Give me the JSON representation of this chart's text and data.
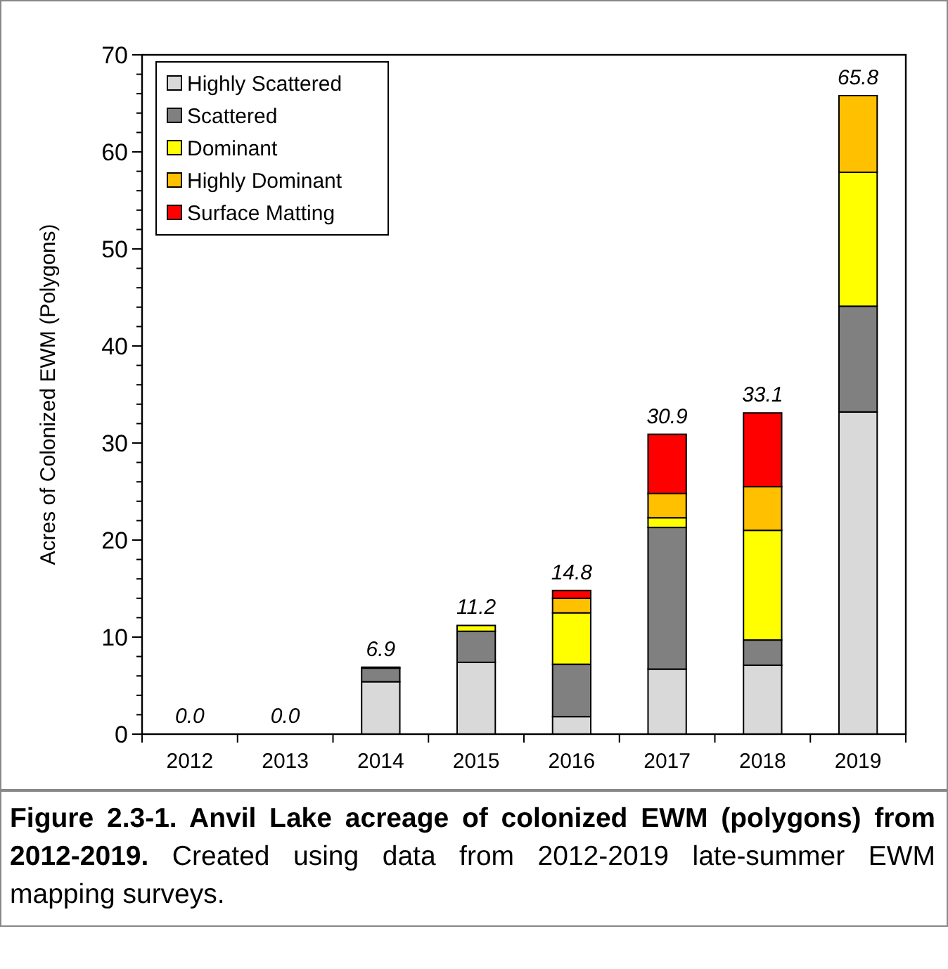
{
  "chart_data": {
    "type": "bar",
    "stacked": true,
    "ylabel": "Acres of Colonized EWM (Polygons)",
    "categories": [
      "2012",
      "2013",
      "2014",
      "2015",
      "2016",
      "2017",
      "2018",
      "2019"
    ],
    "series": [
      {
        "name": "Highly Scattered",
        "color": "#d9d9d9",
        "values": [
          0,
          0,
          5.4,
          7.4,
          1.8,
          6.7,
          7.1,
          33.2
        ]
      },
      {
        "name": "Scattered",
        "color": "#808080",
        "values": [
          0,
          0,
          1.4,
          3.2,
          5.4,
          14.6,
          2.6,
          10.9
        ]
      },
      {
        "name": "Dominant",
        "color": "#ffff00",
        "values": [
          0,
          0,
          0,
          0.6,
          5.3,
          1.0,
          11.3,
          13.8
        ]
      },
      {
        "name": "Highly Dominant",
        "color": "#ffc000",
        "values": [
          0,
          0,
          0,
          0,
          1.5,
          2.5,
          4.5,
          7.9
        ]
      },
      {
        "name": "Surface Matting",
        "color": "#ff0000",
        "values": [
          0,
          0,
          0.1,
          0,
          0.8,
          6.1,
          7.6,
          0
        ]
      }
    ],
    "totals": [
      "0.0",
      "0.0",
      "6.9",
      "11.2",
      "14.8",
      "30.9",
      "33.1",
      "65.8"
    ],
    "ylim": [
      0,
      70
    ],
    "yticks": [
      0,
      {
        "value": 2,
        "label": null
      },
      {
        "value": 4,
        "label": null
      },
      {
        "value": 6,
        "label": null
      },
      {
        "value": 8,
        "label": null
      },
      10,
      {
        "value": 12,
        "label": null
      },
      {
        "value": 14,
        "label": null
      },
      {
        "value": 16,
        "label": null
      },
      {
        "value": 18,
        "label": null
      },
      20,
      {
        "value": 22,
        "label": null
      },
      {
        "value": 24,
        "label": null
      },
      {
        "value": 26,
        "label": null
      },
      {
        "value": 28,
        "label": null
      },
      30,
      {
        "value": 32,
        "label": null
      },
      {
        "value": 34,
        "label": null
      },
      {
        "value": 36,
        "label": null
      },
      {
        "value": 38,
        "label": null
      },
      40,
      {
        "value": 42,
        "label": null
      },
      {
        "value": 44,
        "label": null
      },
      {
        "value": 46,
        "label": null
      },
      {
        "value": 48,
        "label": null
      },
      50,
      {
        "value": 52,
        "label": null
      },
      {
        "value": 54,
        "label": null
      },
      {
        "value": 56,
        "label": null
      },
      {
        "value": 58,
        "label": null
      },
      60,
      {
        "value": 62,
        "label": null
      },
      {
        "value": 64,
        "label": null
      },
      {
        "value": 66,
        "label": null
      },
      {
        "value": 68,
        "label": null
      },
      70
    ],
    "grid": false,
    "legend": "top left",
    "annotations": [
      "Figure 2.3-1.  Anvil Lake acreage of colonized EWM (polygons) from 2012-2019.",
      "Created using data from 2012-2019 late-summer EWM mapping surveys."
    ]
  }
}
